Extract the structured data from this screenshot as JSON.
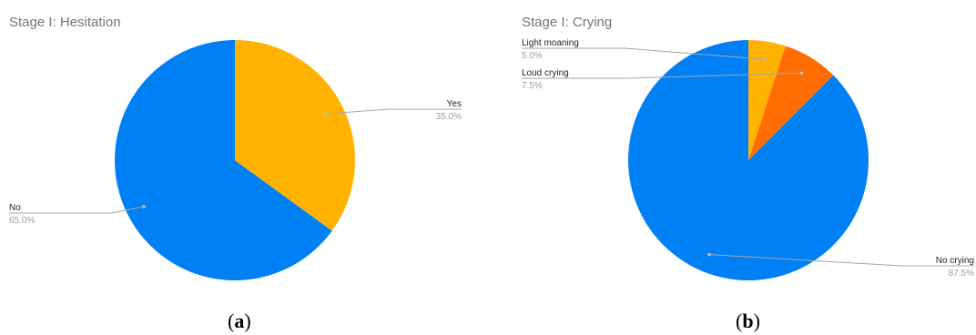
{
  "chart_data": [
    {
      "type": "pie",
      "panel": "a",
      "title": "Stage I: Hesitation",
      "categories": [
        "No",
        "Yes"
      ],
      "values": [
        65.0,
        35.0
      ],
      "value_labels": [
        "65.0%",
        "35.0%"
      ],
      "colors": [
        "#0080f5",
        "#ffb300"
      ],
      "start_angle_deg": 0,
      "direction": "clockwise",
      "legend": "none"
    },
    {
      "type": "pie",
      "panel": "b",
      "title": "Stage I: Crying",
      "categories": [
        "No crying",
        "Loud crying",
        "Light moaning"
      ],
      "values": [
        87.5,
        7.5,
        5.0
      ],
      "value_labels": [
        "87.5%",
        "7.5%",
        "5.0%"
      ],
      "colors": [
        "#0080f5",
        "#ff6d00",
        "#ffb300"
      ],
      "start_angle_deg": 0,
      "direction": "clockwise",
      "legend": "none"
    }
  ],
  "captions": [
    {
      "open": "(",
      "letter": "a",
      "close": ")"
    },
    {
      "open": "(",
      "letter": "b",
      "close": ")"
    }
  ]
}
